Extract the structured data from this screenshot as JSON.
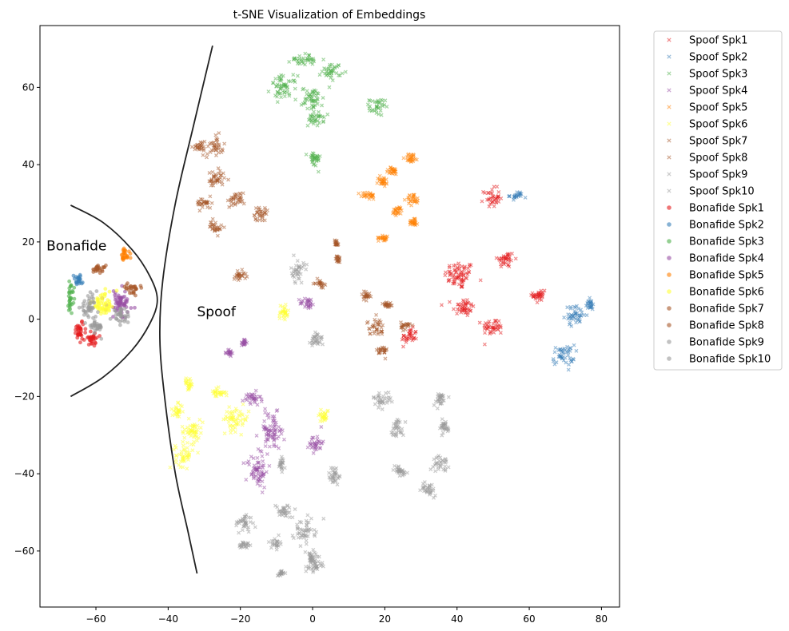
{
  "chart_data": {
    "type": "scatter",
    "title": "t-SNE Visualization of Embeddings",
    "xlabel": "",
    "ylabel": "",
    "xlim": [
      -75.5,
      85
    ],
    "ylim": [
      -74.5,
      76
    ],
    "xticks": [
      -60,
      -40,
      -20,
      0,
      20,
      40,
      60,
      80
    ],
    "yticks": [
      -60,
      -40,
      -20,
      0,
      20,
      40,
      60
    ],
    "grid": false,
    "legend_placement": "outside-right",
    "series": [
      {
        "name": "Spoof Spk1",
        "marker": "x",
        "color": "#e41a1c",
        "clusters": [
          [
            40.7,
            11.4,
            3.5,
            3
          ],
          [
            41.8,
            3.1,
            2.5,
            2
          ],
          [
            53.5,
            15.5,
            2,
            1.8
          ],
          [
            50,
            -2,
            2.5,
            1.8
          ],
          [
            26.8,
            -4.6,
            1.8,
            1.8
          ],
          [
            49.6,
            31.5,
            1.8,
            2
          ],
          [
            62.8,
            6.2,
            1.5,
            2
          ]
        ]
      },
      {
        "name": "Spoof Spk2",
        "marker": "x",
        "color": "#377eb8",
        "clusters": [
          [
            72.8,
            1,
            2.5,
            2
          ],
          [
            69.5,
            -9.3,
            2.5,
            2.2
          ],
          [
            76.8,
            3.7,
            1,
            1.2
          ],
          [
            56.4,
            32,
            1.5,
            0.8
          ]
        ]
      },
      {
        "name": "Spoof Spk3",
        "marker": "x",
        "color": "#4daf4a",
        "clusters": [
          [
            -8,
            60,
            3,
            2.5
          ],
          [
            0,
            57,
            2.5,
            2.5
          ],
          [
            0.9,
            51.8,
            1.8,
            1.5
          ],
          [
            -2.4,
            67.3,
            3,
            1.2
          ],
          [
            5.3,
            64.2,
            2.2,
            1.8
          ],
          [
            17.9,
            54.9,
            1.8,
            1.8
          ],
          [
            0.4,
            41.4,
            1.5,
            1.8
          ]
        ]
      },
      {
        "name": "Spoof Spk4",
        "marker": "x",
        "color": "#984ea3",
        "clusters": [
          [
            -11.3,
            -29,
            3,
            4
          ],
          [
            -16.8,
            -20.7,
            2,
            1.5
          ],
          [
            -15.3,
            -39.3,
            2.5,
            3.5
          ],
          [
            0.9,
            -32,
            1.5,
            2
          ],
          [
            -1.3,
            4.1,
            1.8,
            1.2
          ],
          [
            -19,
            -6,
            0.6,
            0.8
          ],
          [
            -23,
            -8.7,
            0.6,
            0.8
          ]
        ]
      },
      {
        "name": "Spoof Spk5",
        "marker": "x",
        "color": "#ff7f00",
        "clusters": [
          [
            15.3,
            32,
            1.8,
            0.8
          ],
          [
            19.5,
            35.6,
            1.2,
            1.2
          ],
          [
            22.1,
            38.3,
            1.5,
            0.8
          ],
          [
            27.4,
            41.8,
            1.5,
            1
          ],
          [
            27.9,
            31,
            1.5,
            1.2
          ],
          [
            23.5,
            28,
            1.2,
            1
          ],
          [
            28,
            25.3,
            1,
            1
          ],
          [
            19.7,
            21.1,
            1.2,
            0.6
          ]
        ]
      },
      {
        "name": "Spoof Spk6",
        "marker": "x",
        "color": "#ffff33",
        "clusters": [
          [
            -33.4,
            -29,
            2.5,
            2.5
          ],
          [
            -35.6,
            -35.2,
            2,
            2.5
          ],
          [
            -21.2,
            -25.9,
            3,
            2.5
          ],
          [
            -26.3,
            -19,
            1.8,
            1
          ],
          [
            -37.4,
            -23.8,
            1.2,
            1.5
          ],
          [
            -34.3,
            -16.6,
            1,
            1.2
          ],
          [
            -8,
            1.4,
            1.2,
            2.2
          ],
          [
            3.1,
            -24.8,
            1.2,
            1.5
          ]
        ]
      },
      {
        "name": "Spoof Spk7",
        "marker": "x",
        "color": "#a65628",
        "clusters": [
          [
            -31.2,
            44.5,
            1.5,
            1.5
          ],
          [
            -26.5,
            45,
            1.5,
            2
          ],
          [
            -26.8,
            36.2,
            2,
            2
          ],
          [
            -30,
            30,
            1.8,
            1.2
          ],
          [
            -21.2,
            31,
            2,
            1.5
          ],
          [
            -26.8,
            23.8,
            1.5,
            1.5
          ],
          [
            -14.6,
            27.3,
            1.8,
            1.5
          ],
          [
            -20.1,
            11.4,
            1.5,
            1
          ],
          [
            2,
            9.3,
            1,
            0.8
          ],
          [
            6.6,
            19.7,
            0.5,
            0.8
          ],
          [
            7,
            15.5,
            0.5,
            0.8
          ]
        ]
      },
      {
        "name": "Spoof Spk8",
        "marker": "x",
        "color": "#a65628",
        "clusters": [
          [
            17.5,
            -2,
            2,
            1.8
          ],
          [
            14.8,
            6.2,
            1,
            1
          ],
          [
            20.8,
            3.7,
            1.2,
            0.8
          ],
          [
            19.2,
            -8.3,
            1.2,
            1.2
          ],
          [
            25.9,
            -1.7,
            1.2,
            0.8
          ]
        ]
      },
      {
        "name": "Spoof Spk9",
        "marker": "x",
        "color": "#999999",
        "clusters": [
          [
            -4.2,
            12.4,
            1.5,
            2.5
          ],
          [
            1.3,
            -5.2,
            1.5,
            1.8
          ],
          [
            19.2,
            -20.7,
            2,
            1.5
          ],
          [
            23.5,
            -28,
            1.5,
            2
          ],
          [
            24.1,
            -39.3,
            1.8,
            1.2
          ],
          [
            35.2,
            -20.7,
            1.5,
            1.5
          ],
          [
            36.3,
            -28,
            1.5,
            1.5
          ],
          [
            35.6,
            -37.3,
            1.8,
            1.5
          ],
          [
            32.3,
            -43.9,
            1.8,
            1.5
          ],
          [
            6,
            -40.4,
            1.5,
            2
          ]
        ]
      },
      {
        "name": "Spoof Spk10",
        "marker": "x",
        "color": "#999999",
        "clusters": [
          [
            -19,
            -52.8,
            2,
            2
          ],
          [
            -18.6,
            -58.4,
            1.5,
            0.8
          ],
          [
            -10.2,
            -58,
            1,
            1.2
          ],
          [
            -2.4,
            -54.9,
            2.5,
            2.5
          ],
          [
            -0.2,
            -62.1,
            2,
            2
          ],
          [
            -7.7,
            -49.7,
            2,
            1.5
          ],
          [
            -8.6,
            -37.3,
            0.6,
            1.5
          ],
          [
            0.9,
            -64.2,
            1.5,
            1
          ],
          [
            -9,
            -65.8,
            0.8,
            0.6
          ]
        ]
      },
      {
        "name": "Bonafide Spk1",
        "marker": "o",
        "color": "#e41a1c",
        "clusters": [
          [
            -64.4,
            -3.1,
            1.5,
            2
          ],
          [
            -61,
            -5,
            1.5,
            1.5
          ]
        ]
      },
      {
        "name": "Bonafide Spk2",
        "marker": "o",
        "color": "#377eb8",
        "clusters": [
          [
            -65,
            10,
            1,
            1.2
          ]
        ]
      },
      {
        "name": "Bonafide Spk3",
        "marker": "o",
        "color": "#4daf4a",
        "clusters": [
          [
            -67,
            6,
            0.8,
            3
          ]
        ]
      },
      {
        "name": "Bonafide Spk4",
        "marker": "o",
        "color": "#984ea3",
        "clusters": [
          [
            -53.3,
            4,
            3,
            3
          ]
        ]
      },
      {
        "name": "Bonafide Spk5",
        "marker": "o",
        "color": "#ff7f00",
        "clusters": [
          [
            -52.2,
            16.5,
            1.2,
            1.5
          ]
        ]
      },
      {
        "name": "Bonafide Spk6",
        "marker": "o",
        "color": "#ffff33",
        "clusters": [
          [
            -57.7,
            4,
            3,
            2.5
          ]
        ]
      },
      {
        "name": "Bonafide Spk7",
        "marker": "o",
        "color": "#a65628",
        "clusters": [
          [
            -59.5,
            13,
            1.8,
            0.8
          ]
        ]
      },
      {
        "name": "Bonafide Spk8",
        "marker": "o",
        "color": "#a65628",
        "clusters": [
          [
            -50,
            8,
            1.8,
            1
          ]
        ]
      },
      {
        "name": "Bonafide Spk9",
        "marker": "o",
        "color": "#999999",
        "clusters": [
          [
            -62,
            3,
            2,
            2.5
          ],
          [
            -53,
            1,
            2,
            1.5
          ]
        ]
      },
      {
        "name": "Bonafide Spk10",
        "marker": "o",
        "color": "#999999",
        "clusters": [
          [
            -60,
            -2,
            1.5,
            1.5
          ]
        ]
      }
    ],
    "annotations": [
      {
        "text": "Bonafide",
        "x": -73.7,
        "y": 19
      },
      {
        "text": "Spoof",
        "x": -32,
        "y": 2
      }
    ],
    "boundaries": [
      {
        "name": "bonafide-boundary",
        "points": [
          [
            -67,
            29.5
          ],
          [
            -58,
            25
          ],
          [
            -50,
            18
          ],
          [
            -45,
            11
          ],
          [
            -43,
            5
          ],
          [
            -45,
            -1
          ],
          [
            -50,
            -8
          ],
          [
            -58,
            -15
          ],
          [
            -67,
            -20
          ]
        ]
      },
      {
        "name": "spoof-boundary",
        "points": [
          [
            -27.7,
            70.8
          ],
          [
            -33,
            50
          ],
          [
            -38,
            30
          ],
          [
            -41.5,
            10
          ],
          [
            -42.3,
            -5
          ],
          [
            -41,
            -20
          ],
          [
            -38,
            -40
          ],
          [
            -34.5,
            -55
          ],
          [
            -32,
            -65.8
          ]
        ]
      }
    ]
  }
}
